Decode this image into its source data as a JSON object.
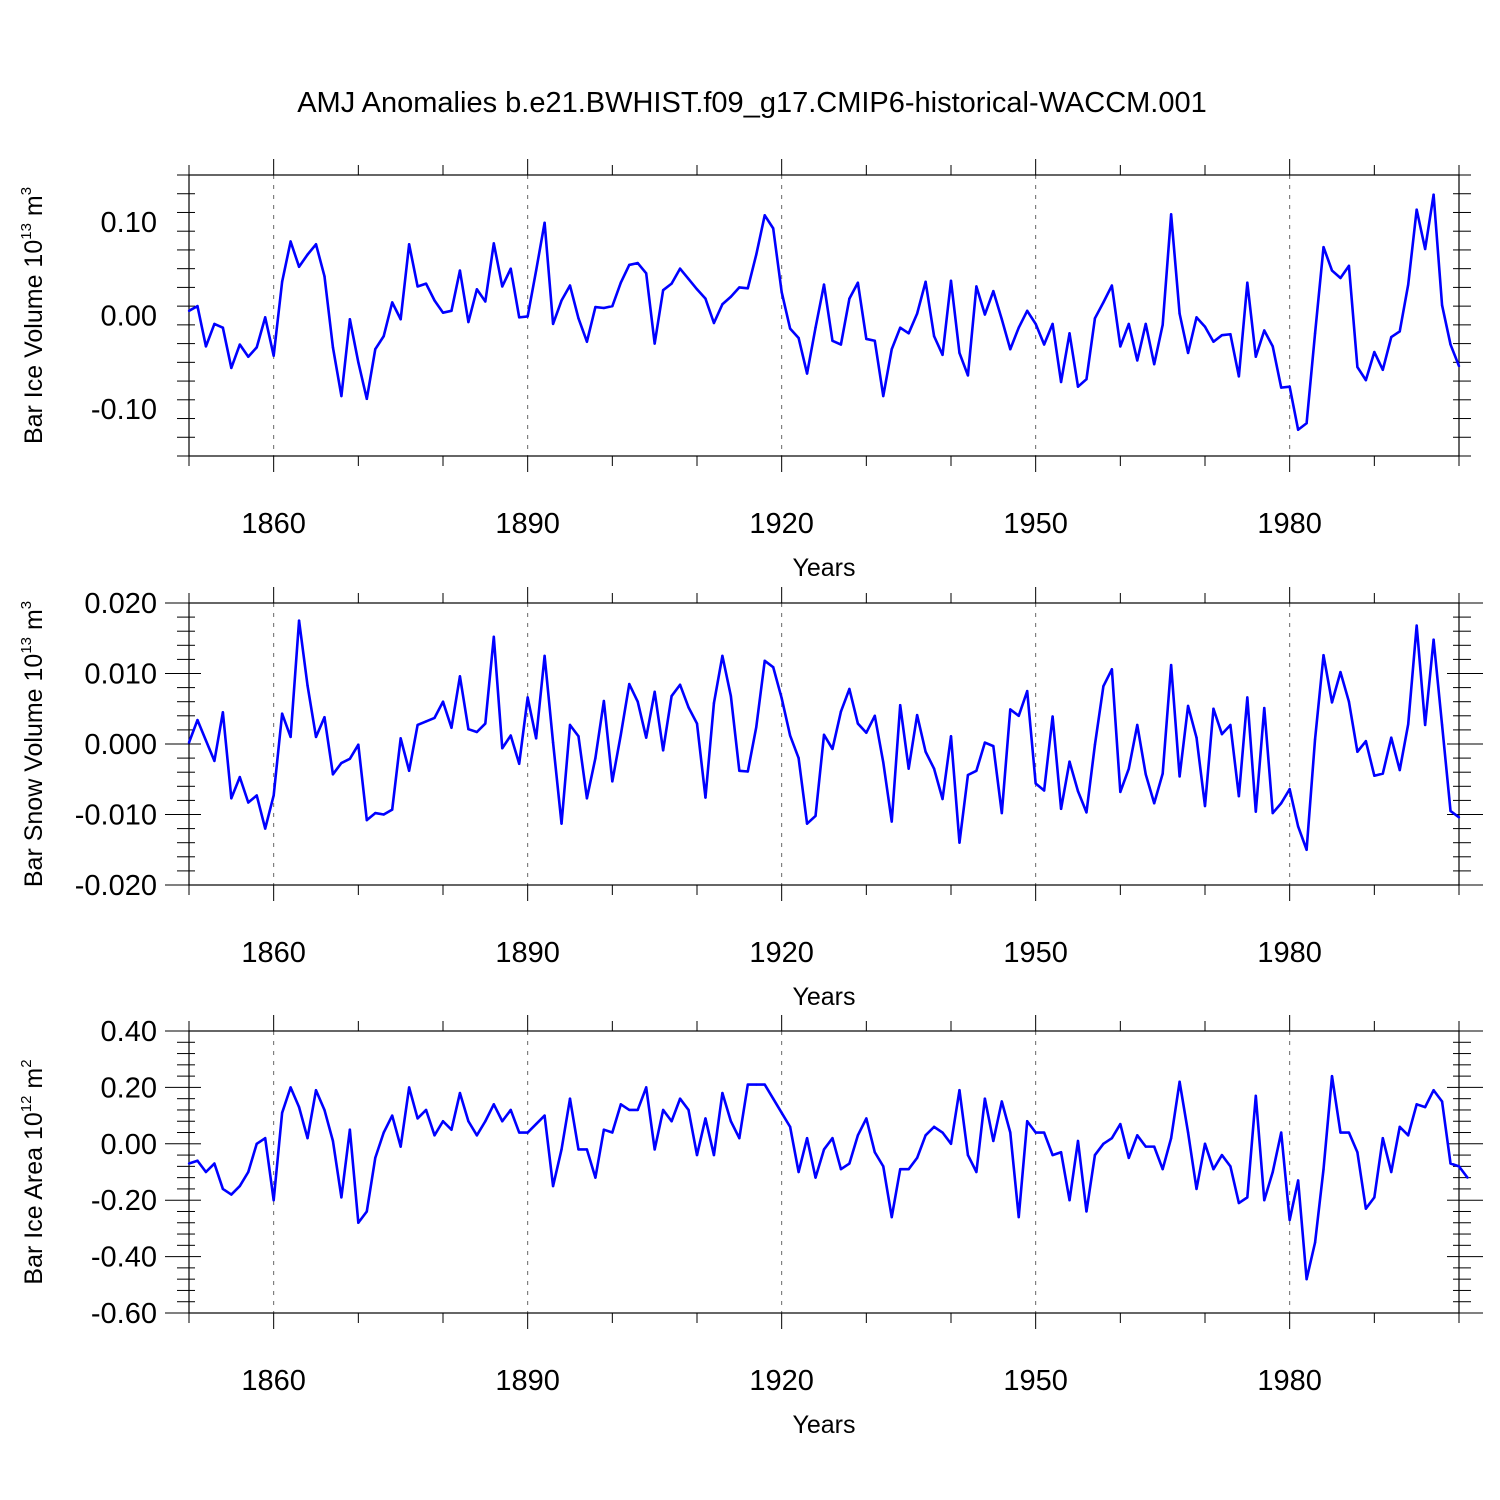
{
  "chart_title": "AMJ Anomalies b.e21.BWHIST.f09_g17.CMIP6-historical-WACCM.001",
  "colors": {
    "series": "#0000ff",
    "axis": "#000000",
    "grid": "#000000"
  },
  "chart_data": [
    {
      "type": "line",
      "name": "ice-volume",
      "ylabel": "Bar Ice Volume 10",
      "ylabel_exp": "13",
      "ylabel_unit": " m",
      "ylabel_unit_exp": "3",
      "xlabel": "Years",
      "xlim": [
        1850,
        2000
      ],
      "ylim": [
        -0.15,
        0.15
      ],
      "yticks": [
        -0.1,
        0.0,
        0.1
      ],
      "ytick_labels": [
        "-0.10",
        "0.00",
        "0.10"
      ],
      "xticks": [
        1860,
        1890,
        1920,
        1950,
        1980
      ],
      "xtick_labels": [
        "1860",
        "1890",
        "1920",
        "1950",
        "1980"
      ],
      "x_start": 1850,
      "values": [
        0.005,
        0.01,
        -0.033,
        -0.009,
        -0.013,
        -0.056,
        -0.031,
        -0.044,
        -0.034,
        -0.002,
        -0.043,
        0.036,
        0.079,
        0.052,
        0.065,
        0.076,
        0.042,
        -0.034,
        -0.086,
        -0.004,
        -0.05,
        -0.089,
        -0.036,
        -0.022,
        0.014,
        -0.004,
        0.076,
        0.031,
        0.034,
        0.016,
        0.003,
        0.005,
        0.048,
        -0.007,
        0.028,
        0.015,
        0.077,
        0.031,
        0.05,
        -0.002,
        -0.001,
        0.048,
        0.099,
        -0.009,
        0.016,
        0.032,
        -0.003,
        -0.028,
        0.009,
        0.008,
        0.01,
        0.035,
        0.054,
        0.056,
        0.045,
        -0.03,
        0.027,
        0.034,
        0.05,
        0.039,
        0.028,
        0.018,
        -0.008,
        0.012,
        0.02,
        0.03,
        0.029,
        0.065,
        0.107,
        0.093,
        0.025,
        -0.014,
        -0.024,
        -0.062,
        -0.013,
        0.033,
        -0.027,
        -0.031,
        0.018,
        0.035,
        -0.025,
        -0.027,
        -0.086,
        -0.036,
        -0.013,
        -0.019,
        0.002,
        0.036,
        -0.022,
        -0.042,
        0.037,
        -0.04,
        -0.064,
        0.031,
        0.001,
        0.026,
        -0.004,
        -0.036,
        -0.013,
        0.005,
        -0.009,
        -0.031,
        -0.009,
        -0.071,
        -0.019,
        -0.076,
        -0.068,
        -0.003,
        0.014,
        0.032,
        -0.033,
        -0.009,
        -0.048,
        -0.009,
        -0.052,
        -0.01,
        0.108,
        0.002,
        -0.04,
        -0.002,
        -0.012,
        -0.028,
        -0.021,
        -0.02,
        -0.065,
        0.035,
        -0.044,
        -0.016,
        -0.033,
        -0.077,
        -0.076,
        -0.122,
        -0.115,
        -0.019,
        0.073,
        0.048,
        0.04,
        0.053,
        -0.055,
        -0.069,
        -0.039,
        -0.058,
        -0.023,
        -0.017,
        0.033,
        0.113,
        0.071,
        0.129,
        0.011,
        -0.031,
        -0.054
      ]
    },
    {
      "type": "line",
      "name": "snow-volume",
      "ylabel": "Bar Snow Volume 10",
      "ylabel_exp": "13",
      "ylabel_unit": " m",
      "ylabel_unit_exp": "3",
      "xlabel": "Years",
      "xlim": [
        1850,
        2000
      ],
      "ylim": [
        -0.02,
        0.02
      ],
      "yticks": [
        -0.02,
        -0.01,
        0.0,
        0.01,
        0.02
      ],
      "ytick_labels": [
        "-0.020",
        "-0.010",
        "0.000",
        "0.010",
        "0.020"
      ],
      "xticks": [
        1860,
        1890,
        1920,
        1950,
        1980
      ],
      "xtick_labels": [
        "1860",
        "1890",
        "1920",
        "1950",
        "1980"
      ],
      "x_start": 1850,
      "values": [
        0.0002,
        0.0034,
        0.0005,
        -0.0024,
        0.0045,
        -0.0077,
        -0.0047,
        -0.0083,
        -0.0073,
        -0.012,
        -0.0073,
        0.0043,
        0.001,
        0.0175,
        0.0083,
        0.001,
        0.0038,
        -0.0043,
        -0.0027,
        -0.0021,
        -0.0001,
        -0.0108,
        -0.0098,
        -0.01,
        -0.0093,
        0.0008,
        -0.0038,
        0.0027,
        0.0032,
        0.0037,
        0.006,
        0.0023,
        0.0096,
        0.0021,
        0.0017,
        0.0029,
        0.0152,
        -0.0006,
        0.0012,
        -0.0028,
        0.0066,
        0.0008,
        0.0125,
        0.0002,
        -0.0113,
        0.0027,
        0.0011,
        -0.0077,
        -0.002,
        0.0061,
        -0.0053,
        0.0013,
        0.0085,
        0.006,
        0.0009,
        0.0074,
        -0.0009,
        0.0068,
        0.0084,
        0.0052,
        0.0029,
        -0.0076,
        0.0058,
        0.0125,
        0.0068,
        -0.0038,
        -0.0039,
        0.0024,
        0.0118,
        0.0109,
        0.0065,
        0.0012,
        -0.002,
        -0.0113,
        -0.0102,
        0.0013,
        -0.0007,
        0.0046,
        0.0078,
        0.0029,
        0.0016,
        0.004,
        -0.0026,
        -0.011,
        0.0055,
        -0.0035,
        0.0041,
        -0.0011,
        -0.0035,
        -0.0078,
        0.0011,
        -0.014,
        -0.0044,
        -0.0038,
        0.0002,
        -0.0003,
        -0.0098,
        0.0049,
        0.004,
        0.0075,
        -0.0056,
        -0.0066,
        0.0039,
        -0.0092,
        -0.0025,
        -0.0067,
        -0.0097,
        -0.0001,
        0.0082,
        0.0106,
        -0.0068,
        -0.0035,
        0.0027,
        -0.0043,
        -0.0084,
        -0.0042,
        0.0112,
        -0.0046,
        0.0054,
        0.0009,
        -0.0088,
        0.005,
        0.0014,
        0.0027,
        -0.0074,
        0.0066,
        -0.0096,
        0.0051,
        -0.0098,
        -0.0084,
        -0.0064,
        -0.0117,
        -0.015,
        0.0007,
        0.0126,
        0.0059,
        0.0102,
        0.006,
        -0.0011,
        0.0004,
        -0.0045,
        -0.0042,
        0.0009,
        -0.0037,
        0.0028,
        0.0168,
        0.0027,
        0.0148,
        0.0027,
        -0.0095,
        -0.0104
      ]
    },
    {
      "type": "line",
      "name": "ice-area",
      "ylabel": "Bar Ice Area 10",
      "ylabel_exp": "12",
      "ylabel_unit": " m",
      "ylabel_unit_exp": "2",
      "xlabel": "Years",
      "xlim": [
        1850,
        2000
      ],
      "ylim": [
        -0.6,
        0.4
      ],
      "yticks": [
        -0.6,
        -0.4,
        -0.2,
        0.0,
        0.2,
        0.4
      ],
      "ytick_labels": [
        "-0.60",
        "-0.40",
        "-0.20",
        "0.00",
        "0.20",
        "0.40"
      ],
      "xticks": [
        1860,
        1890,
        1920,
        1950,
        1980
      ],
      "xtick_labels": [
        "1860",
        "1890",
        "1920",
        "1950",
        "1980"
      ],
      "x_start": 1850,
      "values": [
        -0.07,
        -0.06,
        -0.1,
        -0.07,
        -0.16,
        -0.18,
        -0.15,
        -0.1,
        0.0,
        0.02,
        -0.2,
        0.11,
        0.2,
        0.13,
        0.02,
        0.19,
        0.12,
        0.01,
        -0.19,
        0.05,
        -0.28,
        -0.24,
        -0.05,
        0.04,
        0.1,
        -0.01,
        0.2,
        0.09,
        0.12,
        0.03,
        0.08,
        0.05,
        0.18,
        0.08,
        0.03,
        0.08,
        0.14,
        0.08,
        0.12,
        0.04,
        0.04,
        0.07,
        0.1,
        -0.15,
        -0.02,
        0.16,
        -0.02,
        -0.02,
        -0.12,
        0.05,
        0.04,
        0.14,
        0.12,
        0.12,
        0.2,
        -0.02,
        0.12,
        0.08,
        0.16,
        0.12,
        -0.04,
        0.09,
        -0.04,
        0.18,
        0.08,
        0.02,
        0.21,
        0.21,
        0.21,
        0.16,
        0.11,
        0.06,
        -0.1,
        0.02,
        -0.12,
        -0.02,
        0.02,
        -0.09,
        -0.07,
        0.03,
        0.09,
        -0.03,
        -0.08,
        -0.26,
        -0.09,
        -0.09,
        -0.05,
        0.03,
        0.06,
        0.04,
        0.0,
        0.19,
        -0.04,
        -0.1,
        0.16,
        0.01,
        0.15,
        0.04,
        -0.26,
        0.08,
        0.04,
        0.04,
        -0.04,
        -0.03,
        -0.2,
        0.01,
        -0.24,
        -0.04,
        0.0,
        0.02,
        0.07,
        -0.05,
        0.03,
        -0.01,
        -0.01,
        -0.09,
        0.02,
        0.22,
        0.04,
        -0.16,
        0.0,
        -0.09,
        -0.04,
        -0.08,
        -0.21,
        -0.19,
        0.17,
        -0.2,
        -0.1,
        0.04,
        -0.27,
        -0.13,
        -0.48,
        -0.35,
        -0.09,
        0.24,
        0.04,
        0.04,
        -0.03,
        -0.23,
        -0.19,
        0.02,
        -0.1,
        0.06,
        0.03,
        0.14,
        0.13,
        0.19,
        0.15,
        -0.07,
        -0.08,
        -0.12
      ]
    }
  ]
}
